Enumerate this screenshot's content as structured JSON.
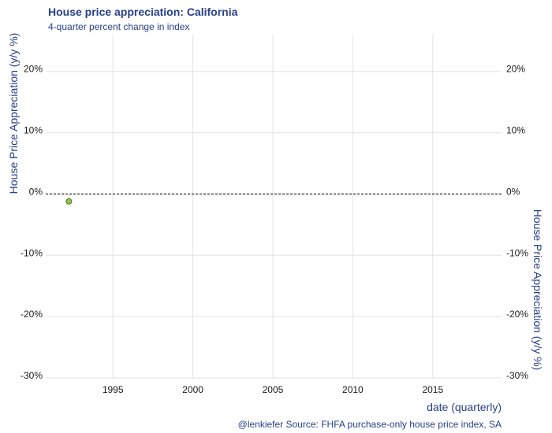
{
  "chart_data": {
    "type": "scatter",
    "title": "House price appreciation: California",
    "subtitle": "4-quarter percent change in index",
    "xlabel": "date (quarterly)",
    "ylabel": "House Price Appreciation (y/y %)",
    "ylabel_right": "House Price Appreciation (y/y %)",
    "caption": "@lenkiefer Source: FHFA purchase-only house price index, SA",
    "xlim": [
      1990.8,
      2019.3
    ],
    "ylim": [
      -0.3,
      0.26
    ],
    "x_ticks": [
      1995,
      2000,
      2005,
      2010,
      2015
    ],
    "x_tick_labels": [
      "1995",
      "2000",
      "2005",
      "2010",
      "2015"
    ],
    "y_ticks": [
      -0.3,
      -0.2,
      -0.1,
      0,
      0.1,
      0.2
    ],
    "y_tick_labels": [
      "-30%",
      "-20%",
      "-10%",
      "0%",
      "10%",
      "20%"
    ],
    "grid": true,
    "reference_line": {
      "y": 0,
      "style": "dashed"
    },
    "point_color": "#8bc34a",
    "point_edge_color": "#4a7a1e",
    "series": [
      {
        "x": [
          1992.25
        ],
        "y": [
          -0.012
        ]
      }
    ]
  }
}
